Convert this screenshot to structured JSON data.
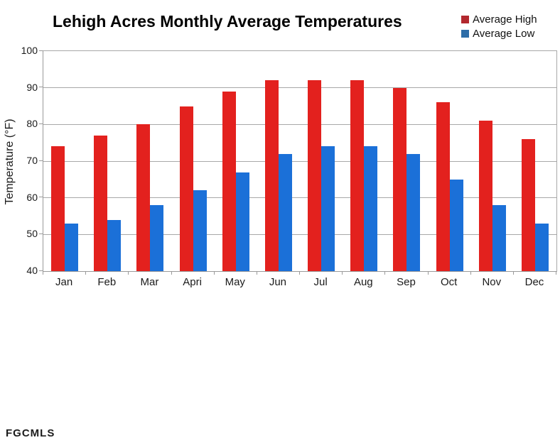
{
  "page": {
    "watermark": "FGCMLS"
  },
  "chart_data": {
    "type": "bar",
    "title": "Lehigh Acres Monthly Average Temperatures",
    "xlabel": "",
    "ylabel": "Temperature (°F)",
    "categories": [
      "Jan",
      "Feb",
      "Mar",
      "Apri",
      "May",
      "Jun",
      "Jul",
      "Aug",
      "Sep",
      "Oct",
      "Nov",
      "Dec"
    ],
    "series": [
      {
        "name": "Average High",
        "color": "#e3211e",
        "legend_color": "#b2282e",
        "values": [
          74,
          77,
          80,
          85,
          89,
          92,
          92,
          92,
          90,
          86,
          81,
          76
        ]
      },
      {
        "name": "Average Low",
        "color": "#1b70d8",
        "legend_color": "#2d6da8",
        "values": [
          53,
          54,
          58,
          62,
          67,
          72,
          74,
          74,
          72,
          65,
          58,
          53
        ]
      }
    ],
    "ylim": [
      40,
      100
    ],
    "ytick_step": 10,
    "grid": true,
    "legend_position": "top-right",
    "axis_color": "#9a9a9a",
    "grid_color": "#a8a8a8"
  }
}
